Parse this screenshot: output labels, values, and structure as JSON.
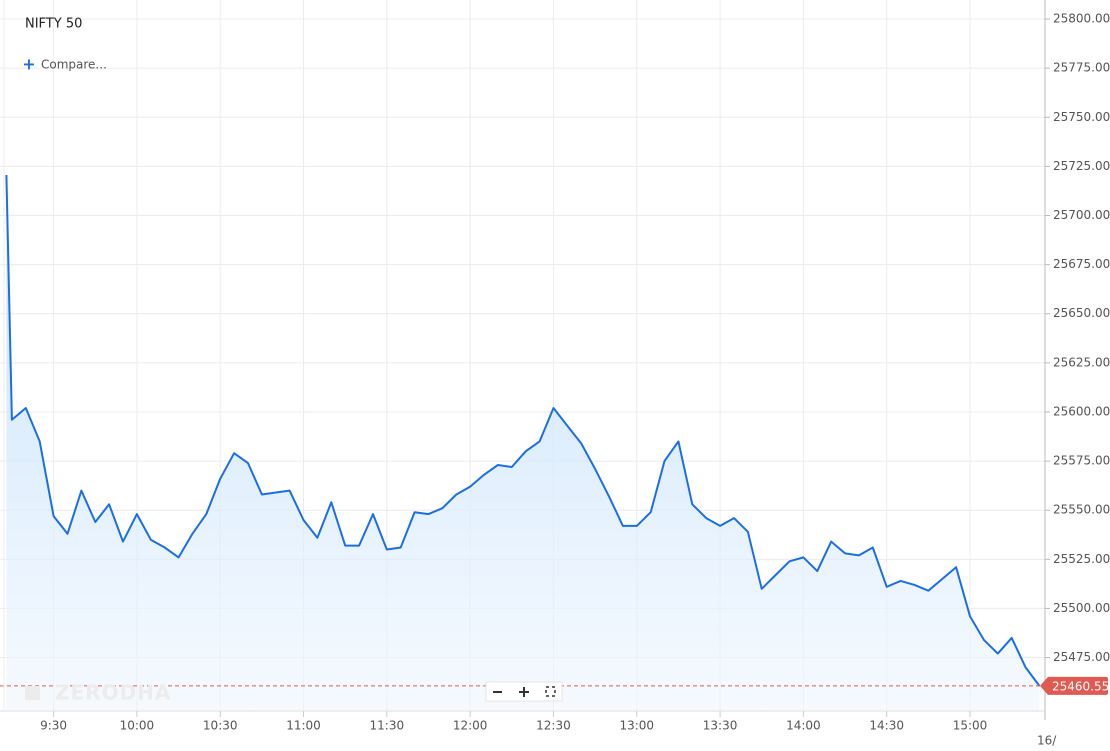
{
  "chart_data": {
    "type": "area",
    "title": "NIFTY 50",
    "compare_label": "Compare...",
    "watermark": "ZERODHA",
    "date_label": "16/",
    "color": "#1b6fe6",
    "grid": true,
    "last_price": 25460.55,
    "last_price_color": "#e05a52",
    "x": [
      553,
      555,
      560,
      565,
      570,
      575,
      580,
      585,
      590,
      595,
      600,
      605,
      610,
      615,
      620,
      625,
      630,
      635,
      640,
      645,
      650,
      655,
      660,
      665,
      670,
      675,
      680,
      685,
      690,
      695,
      700,
      705,
      710,
      715,
      720,
      725,
      730,
      735,
      740,
      745,
      750,
      755,
      760,
      765,
      770,
      775,
      780,
      785,
      790,
      795,
      800,
      805,
      810,
      815,
      820,
      825,
      830,
      835,
      840,
      845,
      850,
      855,
      860,
      865,
      870,
      875,
      880,
      885,
      890,
      895,
      900,
      905,
      910,
      915,
      920,
      925
    ],
    "values": [
      25720.6,
      25596,
      25602,
      25585,
      25547,
      25538,
      25560,
      25544,
      25553,
      25534,
      25548,
      25535,
      25531,
      25526,
      25538,
      25548,
      25566,
      25579,
      25574,
      25558,
      25559,
      25560,
      25545,
      25536,
      25554,
      25532,
      25532,
      25548,
      25530,
      25531,
      25549,
      25548,
      25551,
      25558,
      25562,
      25568,
      25573,
      25572,
      25580,
      25585,
      25602,
      25593,
      25584,
      25571,
      25557,
      25542,
      25542,
      25549,
      25575,
      25585,
      25553,
      25546,
      25542,
      25546,
      25539,
      25510,
      25517,
      25524,
      25526,
      25519,
      25534,
      25528,
      25527,
      25531,
      25511,
      25514,
      25512,
      25509,
      25515,
      25521,
      25496,
      25484,
      25477,
      25485,
      25470,
      25460.55
    ],
    "xlim": [
      550.7,
      927
    ],
    "xticks": [
      {
        "value": 570,
        "label": "9:30"
      },
      {
        "value": 600,
        "label": "10:00"
      },
      {
        "value": 630,
        "label": "10:30"
      },
      {
        "value": 660,
        "label": "11:00"
      },
      {
        "value": 690,
        "label": "11:30"
      },
      {
        "value": 720,
        "label": "12:00"
      },
      {
        "value": 750,
        "label": "12:30"
      },
      {
        "value": 780,
        "label": "13:00"
      },
      {
        "value": 810,
        "label": "13:30"
      },
      {
        "value": 840,
        "label": "14:00"
      },
      {
        "value": 870,
        "label": "14:30"
      },
      {
        "value": 900,
        "label": "15:00"
      }
    ],
    "ylim": [
      25448.3,
      25809.7
    ],
    "yticks": [
      {
        "value": 25475,
        "label": "25475.00"
      },
      {
        "value": 25500,
        "label": "25500.00"
      },
      {
        "value": 25525,
        "label": "25525.00"
      },
      {
        "value": 25550,
        "label": "25550.00"
      },
      {
        "value": 25575,
        "label": "25575.00"
      },
      {
        "value": 25600,
        "label": "25600.00"
      },
      {
        "value": 25625,
        "label": "25625.00"
      },
      {
        "value": 25650,
        "label": "25650.00"
      },
      {
        "value": 25675,
        "label": "25675.00"
      },
      {
        "value": 25700,
        "label": "25700.00"
      },
      {
        "value": 25725,
        "label": "25725.00"
      },
      {
        "value": 25750,
        "label": "25750.00"
      },
      {
        "value": 25775,
        "label": "25775.00"
      },
      {
        "value": 25800,
        "label": "25800.00"
      }
    ]
  }
}
